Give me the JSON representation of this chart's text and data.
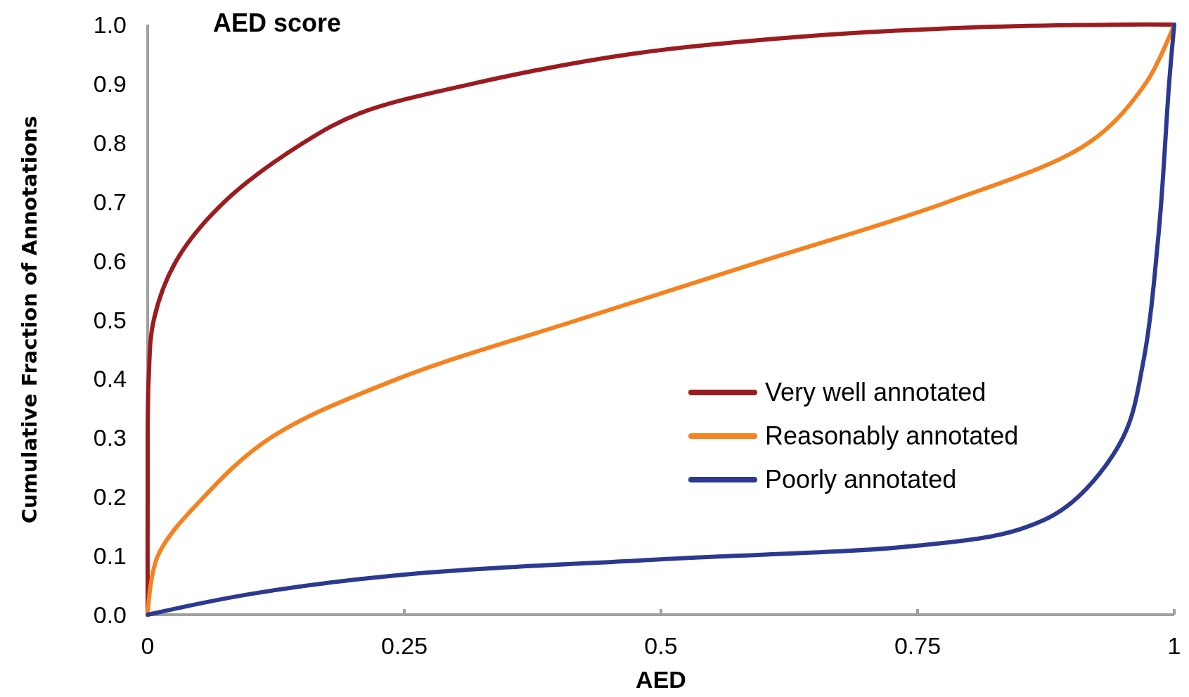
{
  "chart_data": {
    "type": "line",
    "title": "AED score",
    "xlabel": "AED",
    "ylabel": "Cumulative Fraction of Annotations",
    "xlim": [
      0,
      1
    ],
    "ylim": [
      0,
      1
    ],
    "xticks": [
      0,
      0.25,
      0.5,
      0.75,
      1
    ],
    "yticks": [
      {
        "value": 0,
        "label": "0.0"
      },
      {
        "value": 0.1,
        "label": "0.1"
      },
      {
        "value": 0.2,
        "label": "0.2"
      },
      {
        "value": 0.3,
        "label": "0.3"
      },
      {
        "value": 0.4,
        "label": "0.4"
      },
      {
        "value": 0.5,
        "label": "0.5"
      },
      {
        "value": 0.6,
        "label": "0.6"
      },
      {
        "value": 0.7,
        "label": "0.7"
      },
      {
        "value": 0.8,
        "label": "0.8"
      },
      {
        "value": 0.9,
        "label": "0.9"
      },
      {
        "value": 1,
        "label": "1.0"
      }
    ],
    "grid": false,
    "legend": "right",
    "marker": "none",
    "line_style": "solid",
    "series": [
      {
        "name": "Very well annotated",
        "color": "#9b1c20",
        "x": [
          0,
          0,
          0.001,
          0.006,
          0.028,
          0.075,
          0.152,
          0.207,
          0.317,
          0.47,
          0.64,
          0.8,
          0.95,
          1
        ],
        "values": [
          0,
          0.2,
          0.4,
          0.5,
          0.6,
          0.7,
          0.8,
          0.85,
          0.9,
          0.95,
          0.98,
          0.995,
          1,
          1
        ]
      },
      {
        "name": "Reasonably annotated",
        "color": "#f58220",
        "x": [
          0,
          0.01,
          0.055,
          0.12,
          0.244,
          0.42,
          0.6,
          0.78,
          0.917,
          0.972,
          1
        ],
        "values": [
          0,
          0.1,
          0.2,
          0.3,
          0.4,
          0.5,
          0.6,
          0.7,
          0.8,
          0.9,
          1
        ]
      },
      {
        "name": "Poorly annotated",
        "color": "#2b3990",
        "x": [
          0,
          0.1,
          0.25,
          0.5,
          0.75,
          0.85,
          0.9,
          0.95,
          0.97,
          0.985,
          0.995,
          1
        ],
        "values": [
          0,
          0.035,
          0.068,
          0.094,
          0.117,
          0.145,
          0.19,
          0.3,
          0.43,
          0.65,
          0.9,
          1
        ]
      }
    ]
  }
}
